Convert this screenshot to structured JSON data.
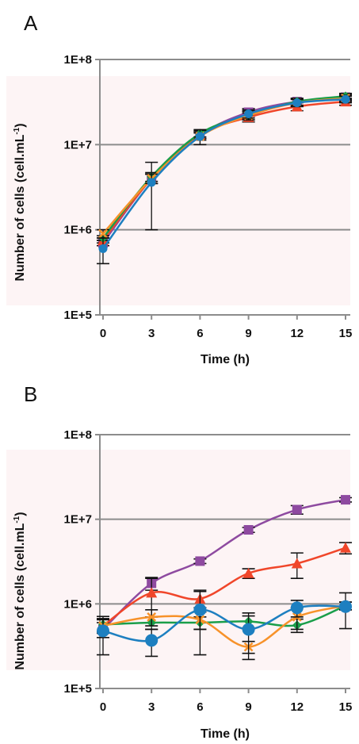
{
  "chart_data": [
    {
      "panel": "A",
      "type": "line",
      "x": [
        0,
        3,
        6,
        9,
        12,
        15
      ],
      "xlabel": "Time (h)",
      "ylabel": "Number of cells (cell.mL",
      "ylabel_sup": "-1",
      "ylabel_close": ")",
      "yscale": "log",
      "ylim": [
        100000,
        100000000
      ],
      "xlim": [
        0,
        15
      ],
      "yticks": [
        100000,
        1000000,
        10000000,
        100000000
      ],
      "ytick_labels": [
        "1E+5",
        "1E+6",
        "1E+7",
        "1E+8"
      ],
      "xtick_labels": [
        "0",
        "3",
        "6",
        "9",
        "12",
        "15"
      ],
      "grid": true,
      "series": [
        {
          "marker": "square",
          "color": "#8e4aa0",
          "values": [
            700000,
            4000000,
            13000000,
            24000000,
            32000000,
            36000000
          ],
          "err": [
            50000,
            500000,
            1200000,
            2500000,
            3000000,
            3000000
          ]
        },
        {
          "marker": "triangle",
          "color": "#f0462a",
          "values": [
            750000,
            4000000,
            13000000,
            21000000,
            28000000,
            32000000
          ],
          "err": [
            50000,
            500000,
            1200000,
            2500000,
            3000000,
            3000000
          ]
        },
        {
          "marker": "diamond",
          "color": "#1a9e4a",
          "values": [
            800000,
            4200000,
            13500000,
            22000000,
            32000000,
            37000000
          ],
          "err": [
            50000,
            500000,
            1200000,
            2500000,
            3000000,
            3000000
          ]
        },
        {
          "marker": "x",
          "color": "#f7922a",
          "values": [
            900000,
            4000000,
            12500000,
            22000000,
            31000000,
            35000000
          ],
          "err": [
            100000,
            500000,
            1200000,
            2500000,
            3000000,
            3000000
          ]
        },
        {
          "marker": "circle",
          "color": "#1d7fc0",
          "values": [
            600000,
            3600000,
            12500000,
            23000000,
            31000000,
            34000000
          ],
          "err": [
            200000,
            2600000,
            2500000,
            2500000,
            3000000,
            3000000
          ]
        }
      ]
    },
    {
      "panel": "B",
      "type": "line",
      "x": [
        0,
        3,
        6,
        9,
        12,
        15
      ],
      "xlabel": "Time (h)",
      "ylabel": "Number of cells (cell.mL",
      "ylabel_sup": "-1",
      "ylabel_close": ")",
      "yscale": "log",
      "ylim": [
        100000,
        100000000
      ],
      "xlim": [
        0,
        15
      ],
      "yticks": [
        100000,
        1000000,
        10000000,
        100000000
      ],
      "ytick_labels": [
        "1E+5",
        "1E+6",
        "1E+7",
        "1E+8"
      ],
      "xtick_labels": [
        "0",
        "3",
        "6",
        "9",
        "12",
        "15"
      ],
      "grid": true,
      "series": [
        {
          "marker": "square",
          "color": "#8e4aa0",
          "values": [
            500000,
            1750000,
            3200000,
            7500000,
            13000000,
            17000000
          ],
          "err": [
            100000,
            300000,
            200000,
            500000,
            1500000,
            1000000
          ]
        },
        {
          "marker": "triangle",
          "color": "#f0462a",
          "values": [
            550000,
            1350000,
            1150000,
            2300000,
            3000000,
            4600000
          ],
          "err": [
            100000,
            650000,
            250000,
            300000,
            1000000,
            700000
          ]
        },
        {
          "marker": "diamond",
          "color": "#1a9e4a",
          "values": [
            570000,
            600000,
            600000,
            620000,
            560000,
            950000
          ],
          "err": [
            100000,
            100000,
            100000,
            100000,
            100000,
            100000
          ]
        },
        {
          "marker": "x",
          "color": "#f7922a",
          "values": [
            550000,
            700000,
            650000,
            310000,
            700000,
            950000
          ],
          "err": [
            100000,
            150000,
            150000,
            50000,
            200000,
            100000
          ]
        },
        {
          "marker": "circle",
          "color": "#1d7fc0",
          "values": [
            480000,
            370000,
            850000,
            500000,
            900000,
            930000
          ],
          "err": [
            230000,
            130000,
            600000,
            280000,
            200000,
            420000
          ]
        }
      ]
    }
  ]
}
